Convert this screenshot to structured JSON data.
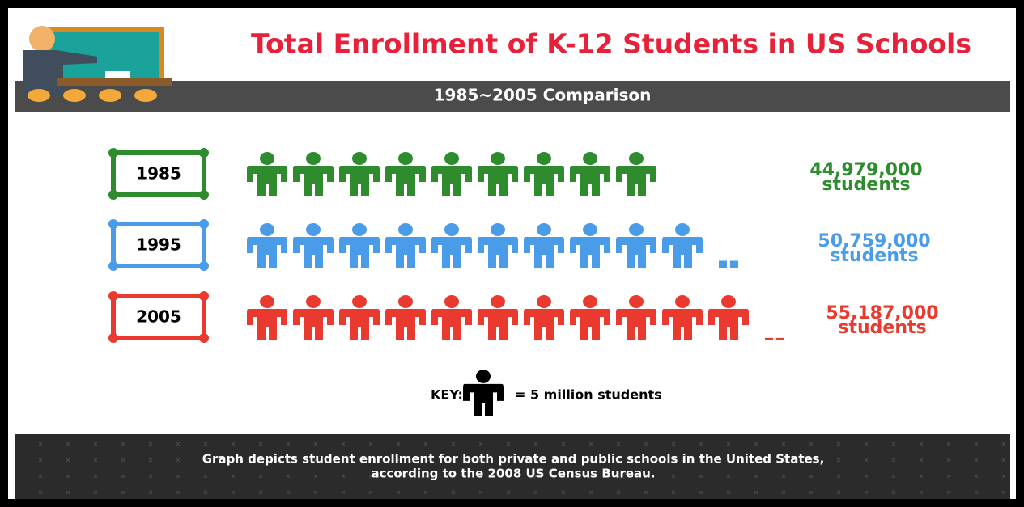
{
  "chart_data": {
    "type": "pictogram",
    "title": "Total Enrollment of K-12 Students in US Schools",
    "subtitle": "1985~2005 Comparison",
    "categories": [
      "1985",
      "1995",
      "2005"
    ],
    "values": [
      44979000,
      50759000,
      55187000
    ],
    "value_labels": [
      "44,979,000",
      "50,759,000",
      "55,187,000"
    ],
    "value_unit": "students",
    "colors": [
      "#2e8b2e",
      "#4a9be8",
      "#ea3a2f"
    ],
    "key": {
      "title": "KEY:",
      "unit": 5000000,
      "label": "= 5 million students",
      "color": "#000000"
    },
    "footnote": [
      "Graph depicts student enrollment for both private and public schools in the United States,",
      "according to the 2008 US Census Bureau."
    ]
  }
}
